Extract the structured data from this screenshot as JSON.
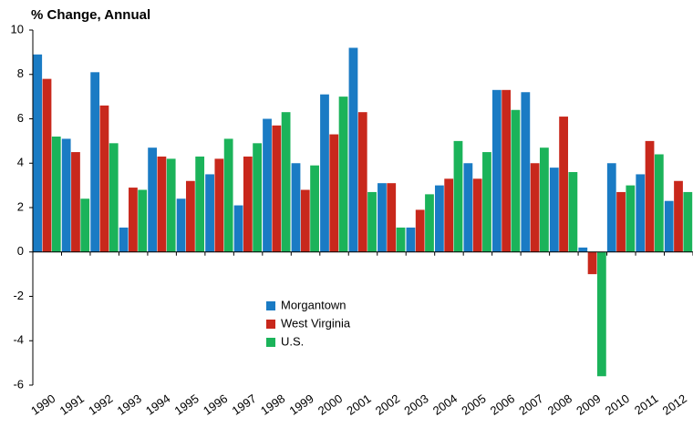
{
  "chart_data": {
    "type": "bar",
    "title": "% Change, Annual",
    "categories": [
      "1990",
      "1991",
      "1992",
      "1993",
      "1994",
      "1995",
      "1996",
      "1997",
      "1998",
      "1999",
      "2000",
      "2001",
      "2002",
      "2003",
      "2004",
      "2005",
      "2006",
      "2007",
      "2008",
      "2009",
      "2010",
      "2011",
      "2012"
    ],
    "series": [
      {
        "name": "Morgantown",
        "color": "#1a7bc4",
        "values": [
          8.9,
          5.1,
          8.1,
          1.1,
          4.7,
          2.4,
          3.5,
          2.1,
          6.0,
          4.0,
          7.1,
          9.2,
          3.1,
          1.1,
          3.0,
          4.0,
          7.3,
          7.2,
          3.8,
          0.2,
          4.0,
          3.5,
          2.3
        ]
      },
      {
        "name": "West Virginia",
        "color": "#c8281c",
        "values": [
          7.8,
          4.5,
          6.6,
          2.9,
          4.3,
          3.2,
          4.2,
          4.3,
          5.7,
          2.8,
          5.3,
          6.3,
          3.1,
          1.9,
          3.3,
          3.3,
          7.3,
          4.0,
          6.1,
          -1.0,
          2.7,
          5.0,
          3.2
        ]
      },
      {
        "name": "U.S.",
        "color": "#1bb35a",
        "values": [
          5.2,
          2.4,
          4.9,
          2.8,
          4.2,
          4.3,
          5.1,
          4.9,
          6.3,
          3.9,
          7.0,
          2.7,
          1.1,
          2.6,
          5.0,
          4.5,
          6.4,
          4.7,
          3.6,
          -5.6,
          3.0,
          4.4,
          2.7
        ]
      }
    ],
    "ylim": [
      -6,
      10
    ],
    "yticks": [
      -6,
      -4,
      -2,
      0,
      2,
      4,
      6,
      8,
      10
    ]
  }
}
